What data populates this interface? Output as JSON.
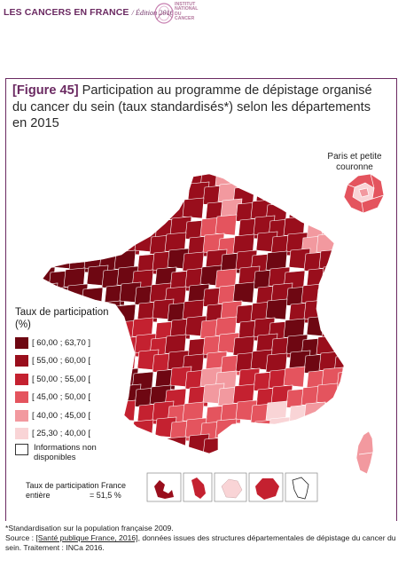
{
  "header": {
    "title_bold": "LES CANCERS",
    "title_rest": " EN FRANCE",
    "edition": "/ Édition 2016",
    "logo_text": "INSTITUT NATIONAL DU CANCER"
  },
  "figure": {
    "label": "[Figure 45]",
    "title": "Participation au programme de dépistage organisé du cancer du sein (taux standardisés*) selon les départements en 2015"
  },
  "inset_paris": {
    "label": "Paris et petite couronne"
  },
  "legend": {
    "title": "Taux de participation (%)",
    "classes": [
      {
        "label": "[ 60,00 ; 63,70 ]",
        "color": "#6e0712"
      },
      {
        "label": "[ 55,00 ; 60,00 [",
        "color": "#990e1c"
      },
      {
        "label": "[ 50,00 ; 55,00 [",
        "color": "#c42130"
      },
      {
        "label": "[ 45,00 ; 50,00 [",
        "color": "#e4545e"
      },
      {
        "label": "[ 40,00 ; 45,00 [",
        "color": "#f2999f"
      },
      {
        "label": "[ 25,30 ; 40,00 [",
        "color": "#f9d4d6"
      }
    ],
    "no_data": "Informations non disponibles"
  },
  "national_rate": {
    "label": "Taux de participation France entière",
    "value": "= 51,5 %"
  },
  "footnote": {
    "line1": "*Standardisation sur la population française 2009.",
    "source_prefix": "Source : ",
    "source_link": "[Santé publique France, 2016]",
    "source_rest": ", données issues des structures départementales de dépistage du cancer du sein. Traitement : INCa 2016."
  }
}
